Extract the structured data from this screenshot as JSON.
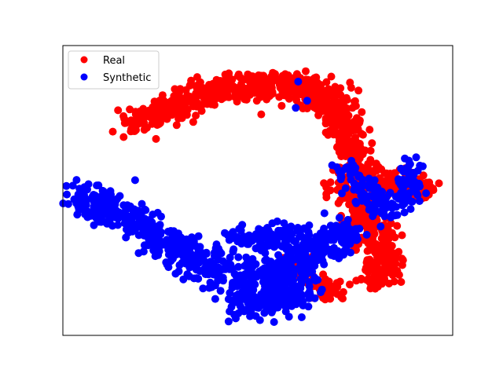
{
  "chart_data": {
    "type": "scatter",
    "title": "",
    "xlabel": "",
    "ylabel": "",
    "axis_ticks": "hidden",
    "xlim": [
      0,
      100
    ],
    "ylim": [
      0,
      100
    ],
    "grid": false,
    "legend_position": "top-left",
    "series": [
      {
        "name": "Real",
        "color": "#ff0000",
        "clusters": [
          {
            "path": [
              [
                18,
                72
              ],
              [
                25,
                77
              ],
              [
                33,
                82
              ],
              [
                41,
                85
              ],
              [
                49,
                86
              ],
              [
                57,
                86
              ],
              [
                63,
                85
              ],
              [
                68,
                81
              ],
              [
                71,
                76
              ]
            ],
            "count": 520,
            "spread": 2.6
          },
          {
            "path": [
              [
                70,
                80
              ],
              [
                72,
                72
              ],
              [
                74,
                64
              ],
              [
                77,
                56
              ],
              [
                82,
                52
              ],
              [
                88,
                52
              ],
              [
                93,
                50
              ]
            ],
            "count": 360,
            "spread": 2.4
          },
          {
            "path": [
              [
                71,
                52
              ],
              [
                75,
                46
              ],
              [
                78,
                40
              ],
              [
                81,
                34
              ],
              [
                83,
                28
              ],
              [
                82,
                22
              ],
              [
                79,
                18
              ]
            ],
            "count": 300,
            "spread": 2.4
          },
          {
            "path": [
              [
                58,
                24
              ],
              [
                63,
                20
              ],
              [
                67,
                16
              ],
              [
                71,
                14
              ]
            ],
            "count": 70,
            "spread": 2.2
          }
        ]
      },
      {
        "name": "Synthetic",
        "color": "#0000ff",
        "clusters": [
          {
            "path": [
              [
                4,
                48
              ],
              [
                10,
                45
              ],
              [
                17,
                40
              ],
              [
                24,
                34
              ],
              [
                31,
                28
              ],
              [
                39,
                23
              ],
              [
                47,
                20
              ],
              [
                55,
                22
              ],
              [
                62,
                27
              ],
              [
                68,
                32
              ],
              [
                73,
                36
              ]
            ],
            "count": 760,
            "spread": 3.0
          },
          {
            "path": [
              [
                44,
                10
              ],
              [
                51,
                12
              ],
              [
                57,
                14
              ],
              [
                61,
                17
              ]
            ],
            "count": 180,
            "spread": 2.8
          },
          {
            "path": [
              [
                42,
                33
              ],
              [
                50,
                33
              ],
              [
                56,
                34
              ],
              [
                62,
                37
              ]
            ],
            "count": 120,
            "spread": 2.2
          },
          {
            "path": [
              [
                72,
                58
              ],
              [
                76,
                52
              ],
              [
                80,
                46
              ],
              [
                84,
                42
              ],
              [
                88,
                50
              ],
              [
                90,
                60
              ]
            ],
            "count": 170,
            "spread": 2.0
          },
          {
            "path": [
              [
                53,
                91
              ],
              [
                68,
                84
              ],
              [
                56,
                77
              ]
            ],
            "count": 3,
            "spread": 0.5
          }
        ]
      }
    ]
  }
}
